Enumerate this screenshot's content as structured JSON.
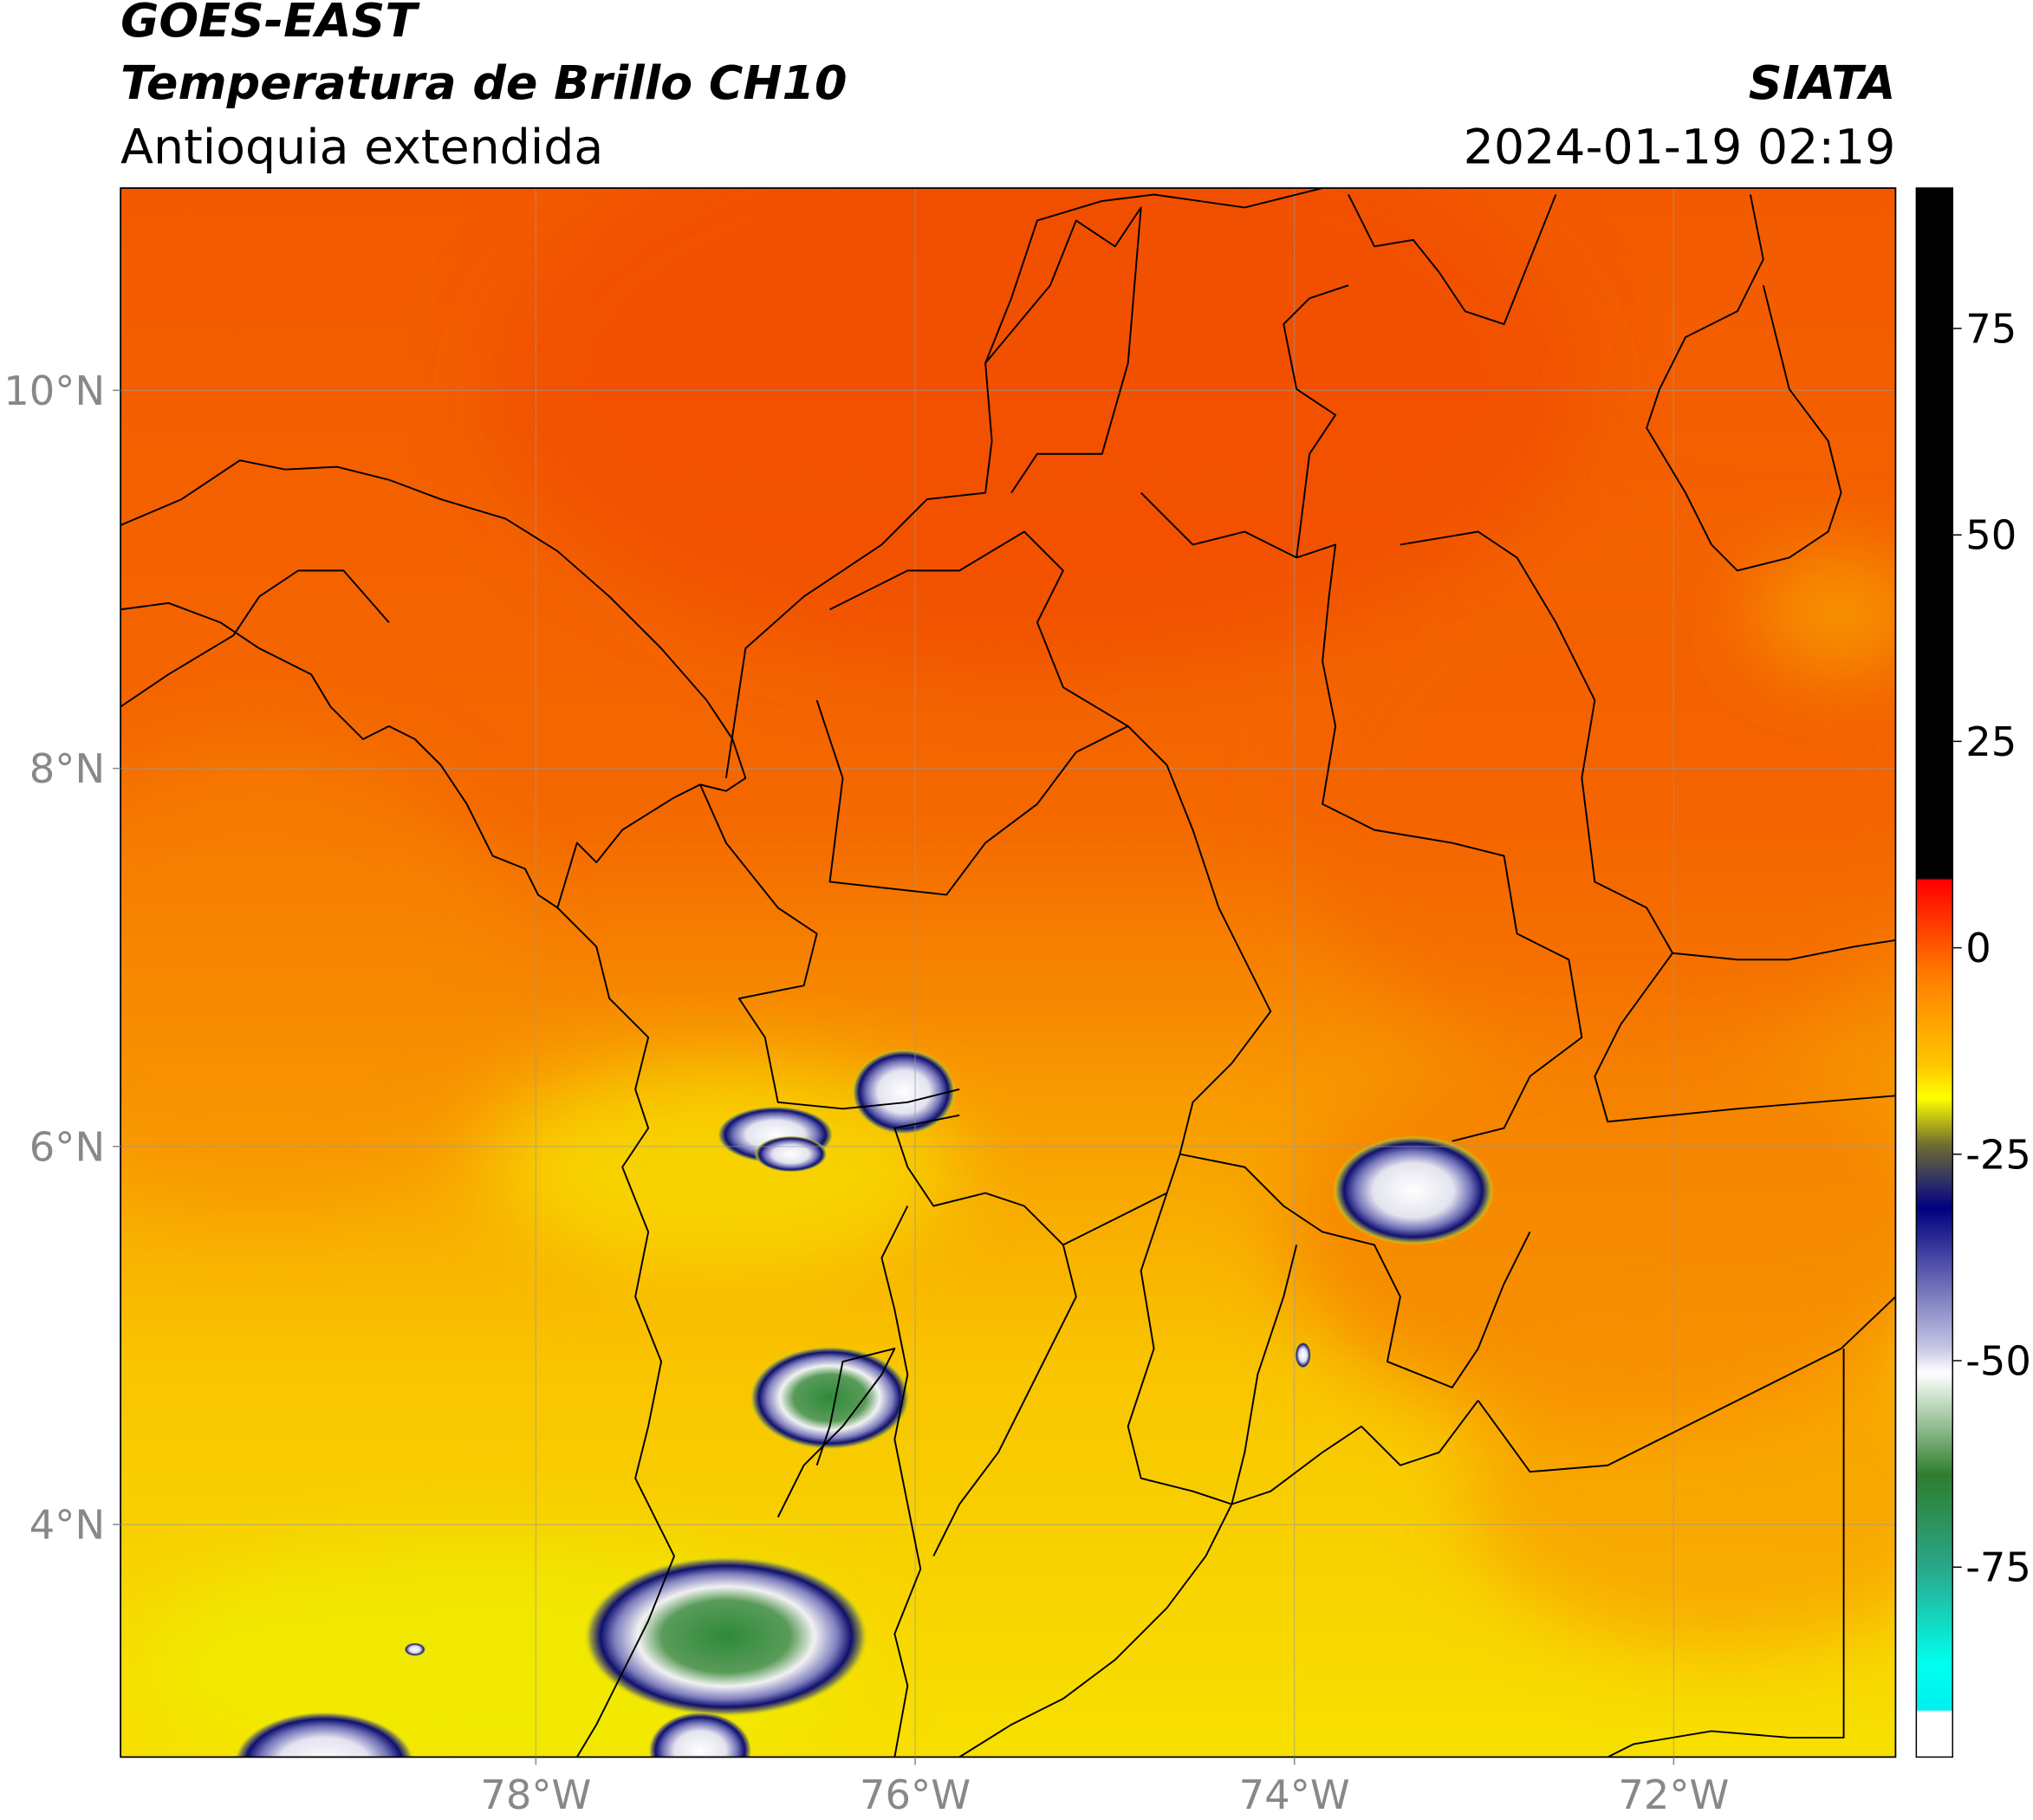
{
  "header": {
    "line1": "GOES-EAST",
    "line2": "Temperatura de Brillo CH10",
    "line3": "Antioquia extendida",
    "source": "SIATA",
    "datetime": "2024-01-19 02:19"
  },
  "map": {
    "xlim": [
      -80.19,
      -70.83
    ],
    "ylim": [
      2.77,
      11.07
    ],
    "xticks": [
      {
        "value": -78,
        "label": "78°W"
      },
      {
        "value": -76,
        "label": "76°W"
      },
      {
        "value": -74,
        "label": "74°W"
      },
      {
        "value": -72,
        "label": "72°W"
      }
    ],
    "yticks": [
      {
        "value": 10,
        "label": "10°N"
      },
      {
        "value": 8,
        "label": "8°N"
      },
      {
        "value": 6,
        "label": "6°N"
      },
      {
        "value": 4,
        "label": "4°N"
      }
    ]
  },
  "colorbar": {
    "lim": [
      -98,
      92
    ],
    "ticks": [
      75,
      50,
      25,
      0,
      -25,
      -50,
      -75
    ]
  }
}
